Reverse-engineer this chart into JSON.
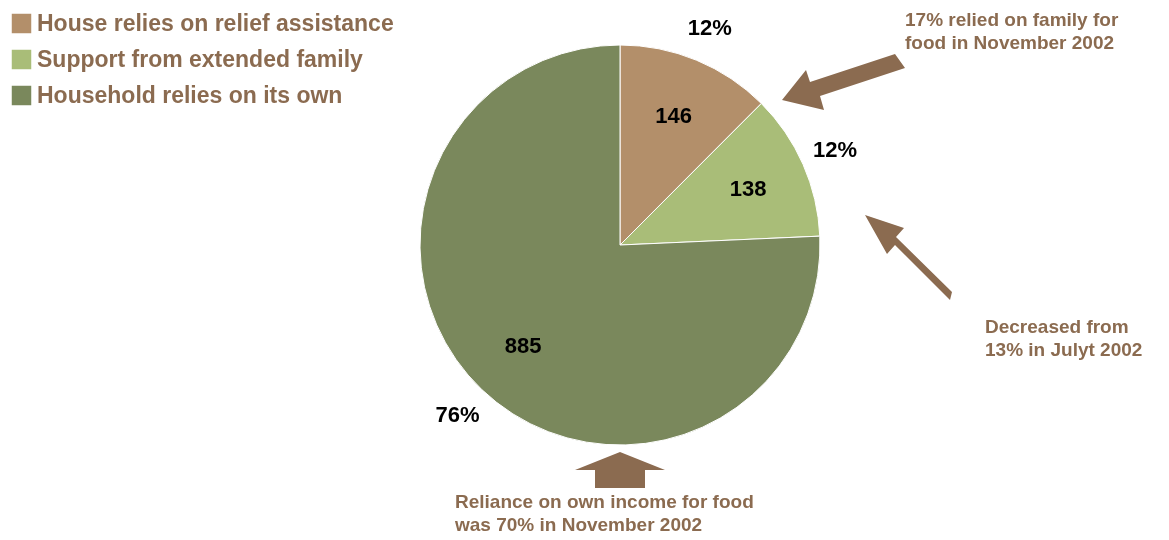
{
  "chart_data": {
    "type": "pie",
    "categories": [
      "House relies on relief assistance",
      "Support from extended family",
      "Household relies on its own"
    ],
    "values": [
      146,
      138,
      885
    ],
    "colors": [
      "#b38f6a",
      "#a9bd78",
      "#7a885c"
    ],
    "data_labels": true,
    "legend": "top left",
    "annotations": [
      "12%",
      "12%",
      "76%",
      "17% relied on family for food in November 2002",
      "Decreased from 13% in Julyt 2002",
      "Reliance on own income for food was 70% in November 2002"
    ]
  }
}
